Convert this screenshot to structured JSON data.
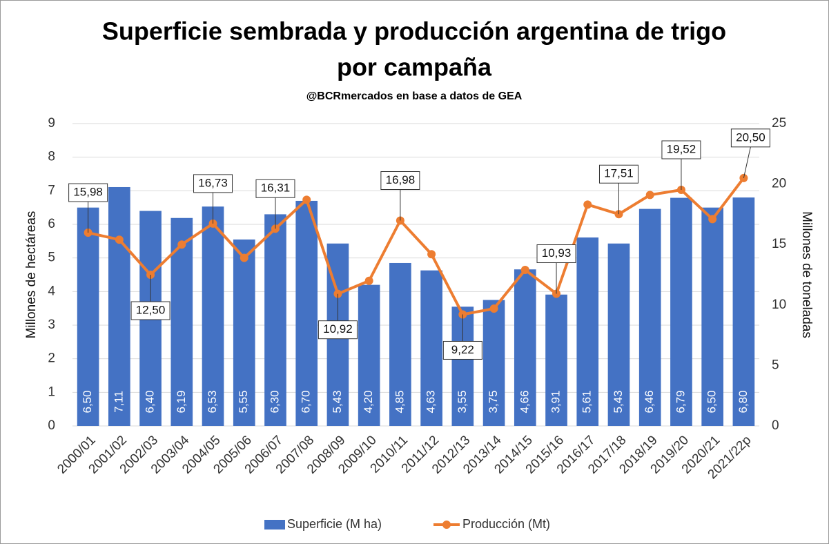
{
  "chart_data": {
    "type": "bar_line",
    "title": [
      "Superficie sembrada y producción argentina de trigo",
      "por campaña"
    ],
    "subtitle": "@BCRmercados en base a datos de GEA",
    "ylabel": "Millones de hectáreas",
    "y2label": "Millones de toneladas",
    "categories": [
      "2000/01",
      "2001/02",
      "2002/03",
      "2003/04",
      "2004/05",
      "2005/06",
      "2006/07",
      "2007/08",
      "2008/09",
      "2009/10",
      "2010/11",
      "2011/12",
      "2012/13",
      "2013/14",
      "2014/15",
      "2015/16",
      "2016/17",
      "2017/18",
      "2018/19",
      "2019/20",
      "2020/21",
      "2021/22p"
    ],
    "series": [
      {
        "name": "Superficie (M ha)",
        "color": "#4472c4",
        "type": "bar",
        "values": [
          6.5,
          7.11,
          6.4,
          6.19,
          6.53,
          5.55,
          6.3,
          6.7,
          5.43,
          4.2,
          4.85,
          4.63,
          3.55,
          3.75,
          4.66,
          3.91,
          5.61,
          5.43,
          6.46,
          6.79,
          6.5,
          6.8
        ],
        "value_labels": [
          "6,50",
          "7,11",
          "6,40",
          "6,19",
          "6,53",
          "5,55",
          "6,30",
          "6,70",
          "5,43",
          "4,20",
          "4,85",
          "4,63",
          "3,55",
          "3,75",
          "4,66",
          "3,91",
          "5,61",
          "5,43",
          "6,46",
          "6,79",
          "6,50",
          "6,80"
        ]
      },
      {
        "name": "Producción (Mt)",
        "color": "#ed7d31",
        "type": "line",
        "axis": "y2",
        "values": [
          15.98,
          15.4,
          12.5,
          15.0,
          16.73,
          13.9,
          16.31,
          18.7,
          10.92,
          12.0,
          16.98,
          14.2,
          9.22,
          9.7,
          12.9,
          10.93,
          18.3,
          17.51,
          19.1,
          19.52,
          17.1,
          20.5
        ],
        "value_labels": [
          "15,98",
          null,
          "12,50",
          null,
          "16,73",
          null,
          "16,31",
          null,
          "10,92",
          null,
          "16,98",
          null,
          "9,22",
          null,
          null,
          "10,93",
          null,
          "17,51",
          null,
          "19,52",
          null,
          "20,50"
        ]
      }
    ],
    "ylim": [
      0,
      9
    ],
    "yticks": [
      0,
      1,
      2,
      3,
      4,
      5,
      6,
      7,
      8,
      9
    ],
    "y2lim": [
      0,
      25
    ],
    "y2ticks": [
      0,
      5,
      10,
      15,
      20,
      25
    ],
    "grid": true
  }
}
